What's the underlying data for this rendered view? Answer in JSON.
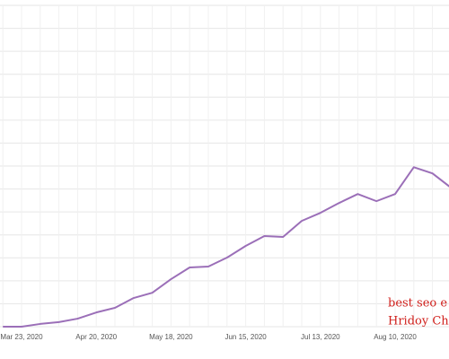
{
  "chart_data": {
    "type": "line",
    "categories": [
      null,
      "Mar 23, 2020",
      null,
      null,
      null,
      "Apr 20, 2020",
      null,
      null,
      null,
      "May 18, 2020",
      null,
      null,
      null,
      "Jun 15, 2020",
      null,
      null,
      null,
      "Jul 13, 2020",
      null,
      null,
      null,
      "Aug 10, 2020",
      null,
      null,
      null
    ],
    "values": [
      0,
      0,
      0.12,
      0.2,
      0.35,
      0.62,
      0.82,
      1.25,
      1.48,
      2.07,
      2.58,
      2.62,
      3.01,
      3.52,
      3.95,
      3.91,
      4.61,
      4.96,
      5.39,
      5.78,
      5.47,
      5.78,
      6.95,
      6.68,
      6.05
    ],
    "color": "#9b6fb8",
    "ylim": [
      0,
      14
    ],
    "yticks": [
      0,
      1,
      2,
      3,
      4,
      5,
      6,
      7,
      8,
      9,
      10,
      11,
      12,
      13,
      14
    ],
    "grid": true,
    "annotations": [
      {
        "text": "best seo e",
        "color": "#d0201c"
      },
      {
        "text": "Hridoy Ch",
        "color": "#d0201c"
      }
    ]
  }
}
